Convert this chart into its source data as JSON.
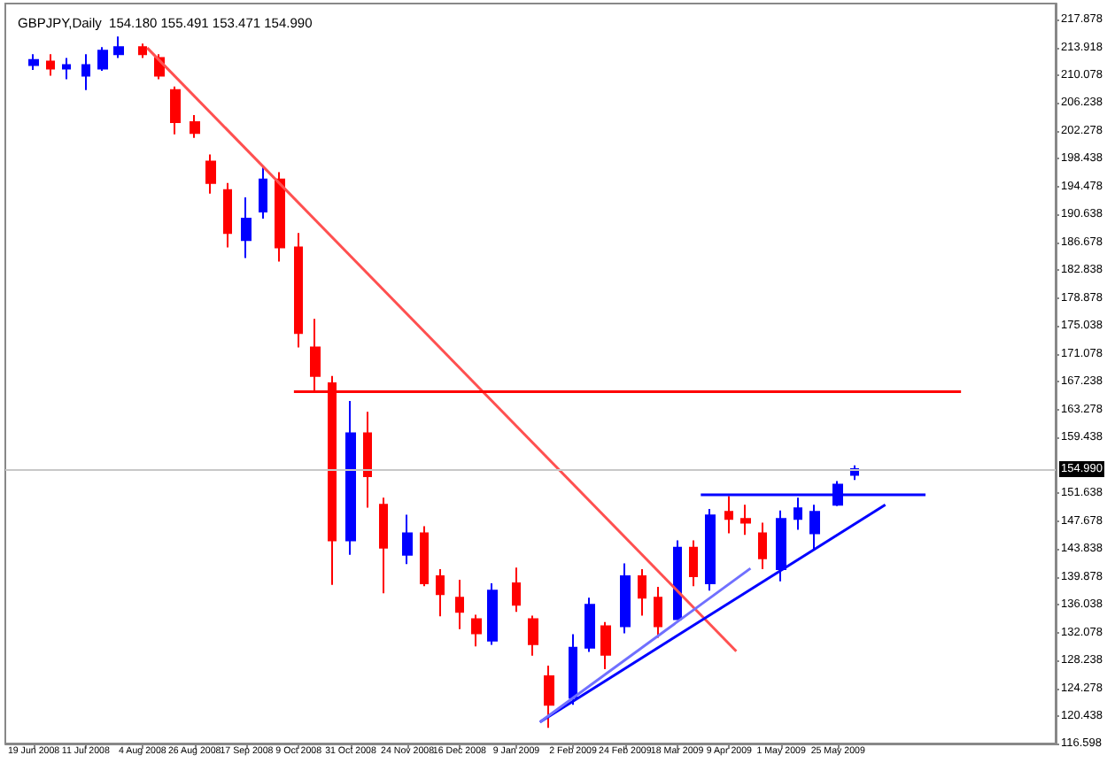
{
  "chart_data": {
    "type": "candlestick",
    "title": "GBPJPY,Daily  154.180 155.491 153.471 154.990",
    "xlim": [
      "2008-06-07",
      "2009-08-25"
    ],
    "xticks": [
      {
        "value": "2008-06-19",
        "label": "19 Jun 2008"
      },
      {
        "value": "2008-07-11",
        "label": "11 Jul 2008"
      },
      {
        "value": "2008-08-04",
        "label": "4 Aug 2008"
      },
      {
        "value": "2008-08-26",
        "label": "26 Aug 2008"
      },
      {
        "value": "2008-09-17",
        "label": "17 Sep 2008"
      },
      {
        "value": "2008-10-09",
        "label": "9 Oct 2008"
      },
      {
        "value": "2008-10-31",
        "label": "31 Oct 2008"
      },
      {
        "value": "2008-11-24",
        "label": "24 Nov 2008"
      },
      {
        "value": "2008-12-16",
        "label": "16 Dec 2008"
      },
      {
        "value": "2009-01-09",
        "label": "9 Jan 2009"
      },
      {
        "value": "2009-02-02",
        "label": "2 Feb 2009"
      },
      {
        "value": "2009-02-24",
        "label": "24 Feb 2009"
      },
      {
        "value": "2009-03-18",
        "label": "18 Mar 2009"
      },
      {
        "value": "2009-04-09",
        "label": "9 Apr 2009"
      },
      {
        "value": "2009-05-01",
        "label": "1 May 2009"
      },
      {
        "value": "2009-05-25",
        "label": "25 May 2009"
      }
    ],
    "ylim": [
      116.598,
      220.1
    ],
    "yticks": [
      116.598,
      120.438,
      124.278,
      128.238,
      132.078,
      136.038,
      139.878,
      143.838,
      147.678,
      151.638,
      159.438,
      163.278,
      167.238,
      171.078,
      175.038,
      178.878,
      182.838,
      186.678,
      190.638,
      194.478,
      198.438,
      202.278,
      206.238,
      210.078,
      213.918,
      217.878
    ],
    "ref_lines": [
      {
        "axis": "y",
        "value": 154.99,
        "label": "154.990",
        "color": "#c8c8c8"
      }
    ],
    "series": [
      {
        "x": [
          "2008-06-19",
          "2008-06-26",
          "2008-07-03",
          "2008-07-11",
          "2008-07-18",
          "2008-07-25",
          "2008-08-04",
          "2008-08-11",
          "2008-08-18",
          "2008-08-26",
          "2008-09-02",
          "2008-09-09",
          "2008-09-17",
          "2008-09-24",
          "2008-10-01",
          "2008-10-09",
          "2008-10-16",
          "2008-10-23",
          "2008-10-31",
          "2008-11-07",
          "2008-11-14",
          "2008-11-24",
          "2008-12-01",
          "2008-12-08",
          "2008-12-16",
          "2008-12-23",
          "2008-12-30",
          "2009-01-09",
          "2009-01-16",
          "2009-01-23",
          "2009-02-02",
          "2009-02-09",
          "2009-02-16",
          "2009-02-24",
          "2009-03-03",
          "2009-03-10",
          "2009-03-18",
          "2009-03-25",
          "2009-04-01",
          "2009-04-09",
          "2009-04-16",
          "2009-04-23",
          "2009-05-01",
          "2009-05-08",
          "2009-05-15",
          "2009-05-25",
          "2009-06-01"
        ],
        "ohlc": [
          [
            211.5,
            213,
            210.8,
            212.2
          ],
          [
            212,
            213,
            210,
            211
          ],
          [
            211,
            212.5,
            209.5,
            211.5
          ],
          [
            210,
            213,
            208,
            211.5
          ],
          [
            211,
            214,
            210.7,
            213.5
          ],
          [
            213,
            215.5,
            212.5,
            214
          ],
          [
            214,
            214.5,
            212.5,
            213
          ],
          [
            212.5,
            213,
            209.5,
            210
          ],
          [
            208,
            208.5,
            201.8,
            203.5
          ],
          [
            203.5,
            204.5,
            201.3,
            202
          ],
          [
            198,
            199,
            193.5,
            195
          ],
          [
            194,
            195,
            186,
            188
          ],
          [
            187,
            193,
            184.5,
            190
          ],
          [
            191,
            197.2,
            190,
            195.5
          ],
          [
            195.5,
            196.5,
            184,
            186
          ],
          [
            186,
            188,
            172,
            174
          ],
          [
            172,
            176,
            165.8,
            168
          ],
          [
            167,
            168,
            138.8,
            145
          ],
          [
            145,
            164.5,
            143,
            160
          ],
          [
            160,
            163,
            149.6,
            154
          ],
          [
            150,
            151,
            137.6,
            144
          ],
          [
            143,
            148.6,
            141.7,
            146
          ],
          [
            146,
            147,
            138.6,
            139
          ],
          [
            140,
            141,
            134.4,
            137.5
          ],
          [
            137,
            139.5,
            132.6,
            135
          ],
          [
            134,
            134.6,
            130.2,
            132
          ],
          [
            131,
            139,
            130.4,
            138
          ],
          [
            139,
            141.2,
            135,
            136
          ],
          [
            134,
            134.5,
            128.9,
            130.5
          ],
          [
            126,
            127.5,
            118.8,
            122
          ],
          [
            123,
            131.9,
            122,
            130
          ],
          [
            130,
            137,
            129.4,
            136
          ],
          [
            133,
            133.6,
            127,
            129
          ],
          [
            133,
            141.8,
            132,
            140
          ],
          [
            140,
            141,
            134.5,
            137
          ],
          [
            137,
            138.5,
            131.4,
            133
          ],
          [
            134,
            145,
            134,
            144
          ],
          [
            144,
            145,
            138.6,
            140
          ],
          [
            139,
            149.4,
            138,
            148.5
          ],
          [
            149,
            151.2,
            146,
            148
          ],
          [
            148,
            150,
            145.8,
            147.5
          ],
          [
            146,
            147.5,
            141,
            142.5
          ],
          [
            141,
            149.2,
            139.3,
            148
          ],
          [
            148,
            151,
            146.5,
            149.5
          ],
          [
            146,
            150,
            143.8,
            149
          ],
          [
            150,
            153.3,
            149.8,
            152.8
          ],
          [
            154.18,
            155.491,
            153.471,
            154.99
          ]
        ],
        "colors": [
          "#0000ff",
          "#ff0000",
          "#0000ff",
          "#0000ff",
          "#0000ff",
          "#0000ff",
          "#ff0000",
          "#ff0000",
          "#ff0000",
          "#ff0000",
          "#ff0000",
          "#ff0000",
          "#0000ff",
          "#0000ff",
          "#ff0000",
          "#ff0000",
          "#ff0000",
          "#ff0000",
          "#0000ff",
          "#ff0000",
          "#ff0000",
          "#0000ff",
          "#ff0000",
          "#ff0000",
          "#ff0000",
          "#ff0000",
          "#0000ff",
          "#ff0000",
          "#ff0000",
          "#ff0000",
          "#0000ff",
          "#0000ff",
          "#ff0000",
          "#0000ff",
          "#ff0000",
          "#ff0000",
          "#0000ff",
          "#ff0000",
          "#0000ff",
          "#ff0000",
          "#ff0000",
          "#ff0000",
          "#0000ff",
          "#0000ff",
          "#0000ff",
          "#0000ff",
          "#0000ff"
        ]
      },
      {
        "type": "line",
        "x": [
          "2008-08-06",
          "2009-04-12"
        ],
        "values": [
          213.9,
          129.5
        ],
        "color": "#ff5050"
      },
      {
        "type": "line",
        "x": [
          "2009-01-19",
          "2009-06-14"
        ],
        "values": [
          119.6,
          150.0
        ],
        "color": "#0000ff"
      },
      {
        "type": "line",
        "x": [
          "2009-01-19",
          "2009-04-18"
        ],
        "values": [
          119.6,
          141.1
        ],
        "color": "#7070ff"
      },
      {
        "type": "line",
        "x": [
          "2009-03-28",
          "2009-07-01"
        ],
        "values": [
          151.4,
          151.4
        ],
        "color": "#0000ff"
      },
      {
        "type": "line",
        "x": [
          "2008-10-07",
          "2009-07-16"
        ],
        "values": [
          165.8,
          165.8
        ],
        "color": "#ff0000"
      }
    ]
  }
}
